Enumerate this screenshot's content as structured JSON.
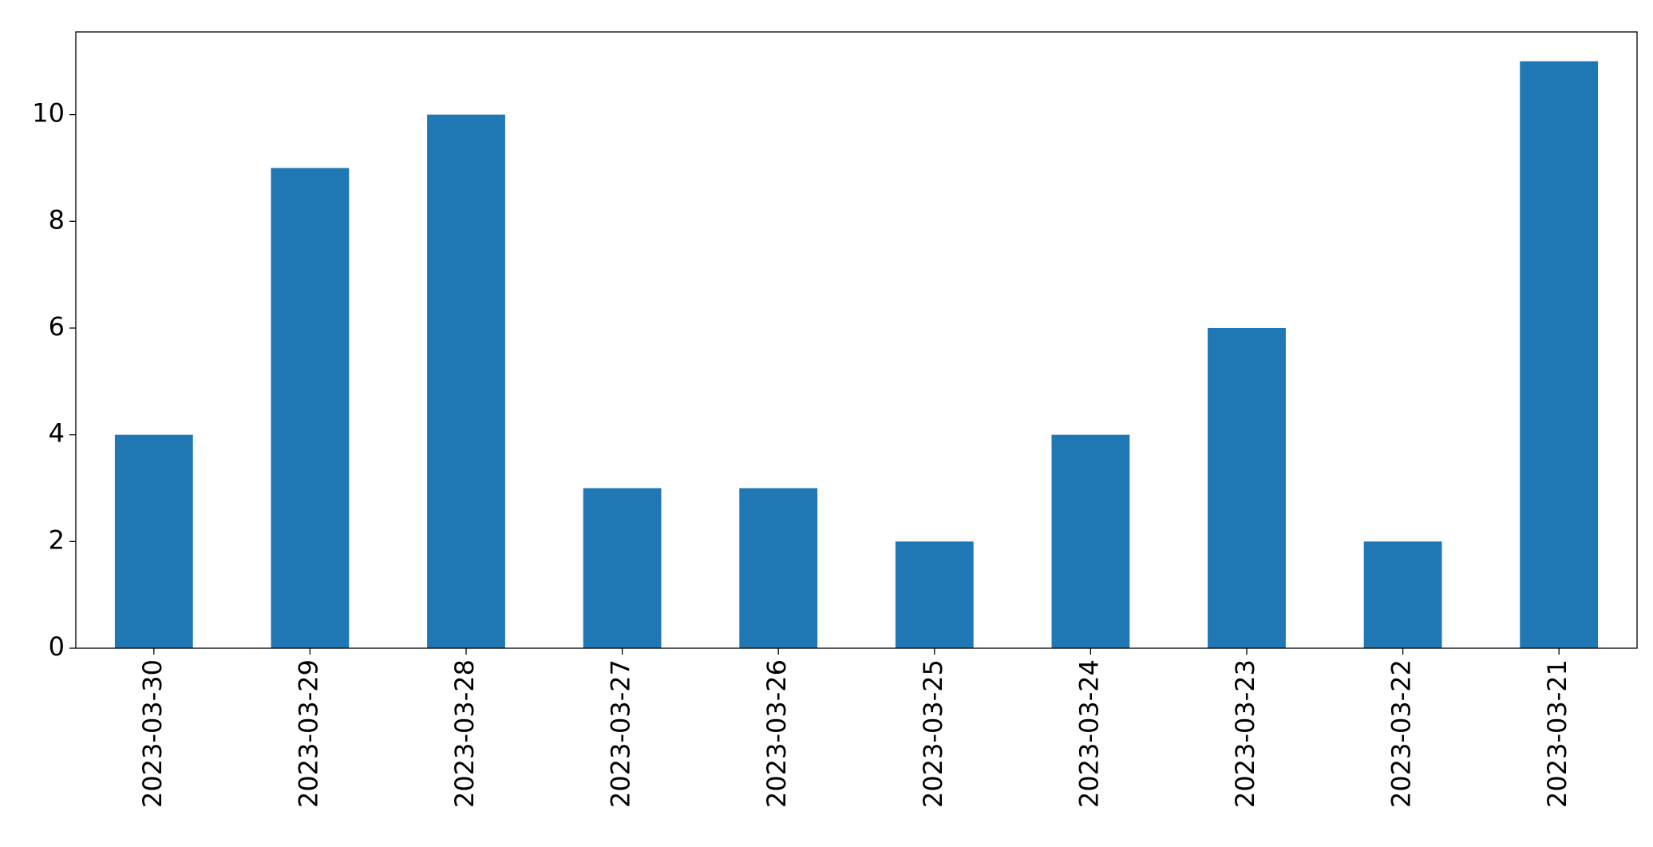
{
  "chart_data": {
    "type": "bar",
    "categories": [
      "2023-03-30",
      "2023-03-29",
      "2023-03-28",
      "2023-03-27",
      "2023-03-26",
      "2023-03-25",
      "2023-03-24",
      "2023-03-23",
      "2023-03-22",
      "2023-03-21"
    ],
    "values": [
      4,
      9,
      10,
      3,
      3,
      2,
      4,
      6,
      2,
      11
    ],
    "color": "#1f77b4",
    "ylim": [
      0,
      11.55
    ],
    "yticks": [
      0,
      2,
      4,
      6,
      8,
      10
    ],
    "grid": false
  }
}
